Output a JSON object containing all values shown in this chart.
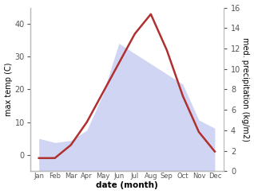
{
  "months": [
    "Jan",
    "Feb",
    "Mar",
    "Apr",
    "May",
    "Jun",
    "Jul",
    "Aug",
    "Sep",
    "Oct",
    "Nov",
    "Dec"
  ],
  "max_temp": [
    -1,
    -1,
    3,
    10,
    19,
    28,
    37,
    43,
    32,
    18,
    7,
    1
  ],
  "precipitation": [
    3.2,
    2.8,
    3.0,
    4.0,
    7.5,
    12.5,
    11.5,
    10.5,
    9.5,
    8.5,
    5.0,
    4.2
  ],
  "temp_color": "#b03030",
  "fill_color": "#c0c8f0",
  "fill_alpha": 0.75,
  "ylabel_left": "max temp (C)",
  "ylabel_right": "med. precipitation (kg/m2)",
  "xlabel": "date (month)",
  "ylim_left": [
    -5,
    45
  ],
  "ylim_right": [
    0,
    16
  ],
  "background_color": "#ffffff"
}
